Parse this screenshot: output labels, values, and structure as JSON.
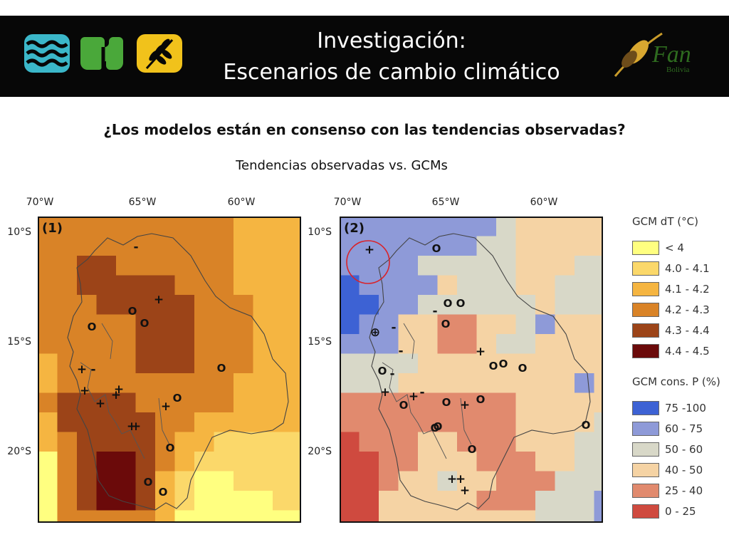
{
  "header": {
    "title_line1": "Investigación:",
    "title_line2": "Escenarios de cambio climático",
    "logo_icons": [
      "water-waves-icon",
      "tree-leaf-icon",
      "wheat-icon",
      "fan-bolivia-bird-logo"
    ],
    "fan_logo_text": "Fan",
    "fan_logo_subtext": "Bolivia"
  },
  "question": "¿Los modelos están en consenso con las tendencias observadas?",
  "subtitle": "Tendencias observadas vs. GCMs",
  "axes": {
    "lon_labels": [
      "70°W",
      "65°W",
      "60°W"
    ],
    "lat_labels": [
      "10°S",
      "15°S",
      "20°S"
    ]
  },
  "panels": [
    {
      "tag": "(1)",
      "variable": "GCM dT (°C)"
    },
    {
      "tag": "(2)",
      "variable": "GCM cons. P (%)"
    }
  ],
  "legend_dt": {
    "title": "GCM dT (°C)",
    "items": [
      {
        "label": "< 4",
        "color": "#ffff80"
      },
      {
        "label": "4.0 - 4.1",
        "color": "#fbd86a"
      },
      {
        "label": "4.1 - 4.2",
        "color": "#f5b541"
      },
      {
        "label": "4.2 - 4.3",
        "color": "#d98327"
      },
      {
        "label": "4.3 - 4.4",
        "color": "#9c4418"
      },
      {
        "label": "4.4 - 4.5",
        "color": "#6b0a0a"
      }
    ]
  },
  "legend_p": {
    "title": "GCM cons. P (%)",
    "items": [
      {
        "label": "75 -100",
        "color": "#3d62d4"
      },
      {
        "label": "60 - 75",
        "color": "#8e9ad8"
      },
      {
        "label": "50 - 60",
        "color": "#d8d8c8"
      },
      {
        "label": "40 - 50",
        "color": "#f5d3a4"
      },
      {
        "label": "25 - 40",
        "color": "#e18a6e"
      },
      {
        "label": "0 - 25",
        "color": "#cf4a3f"
      }
    ]
  },
  "map1_symbols": [
    "+",
    "-",
    "O"
  ],
  "map2_symbols": [
    "+",
    "-",
    "O",
    "⊕"
  ]
}
